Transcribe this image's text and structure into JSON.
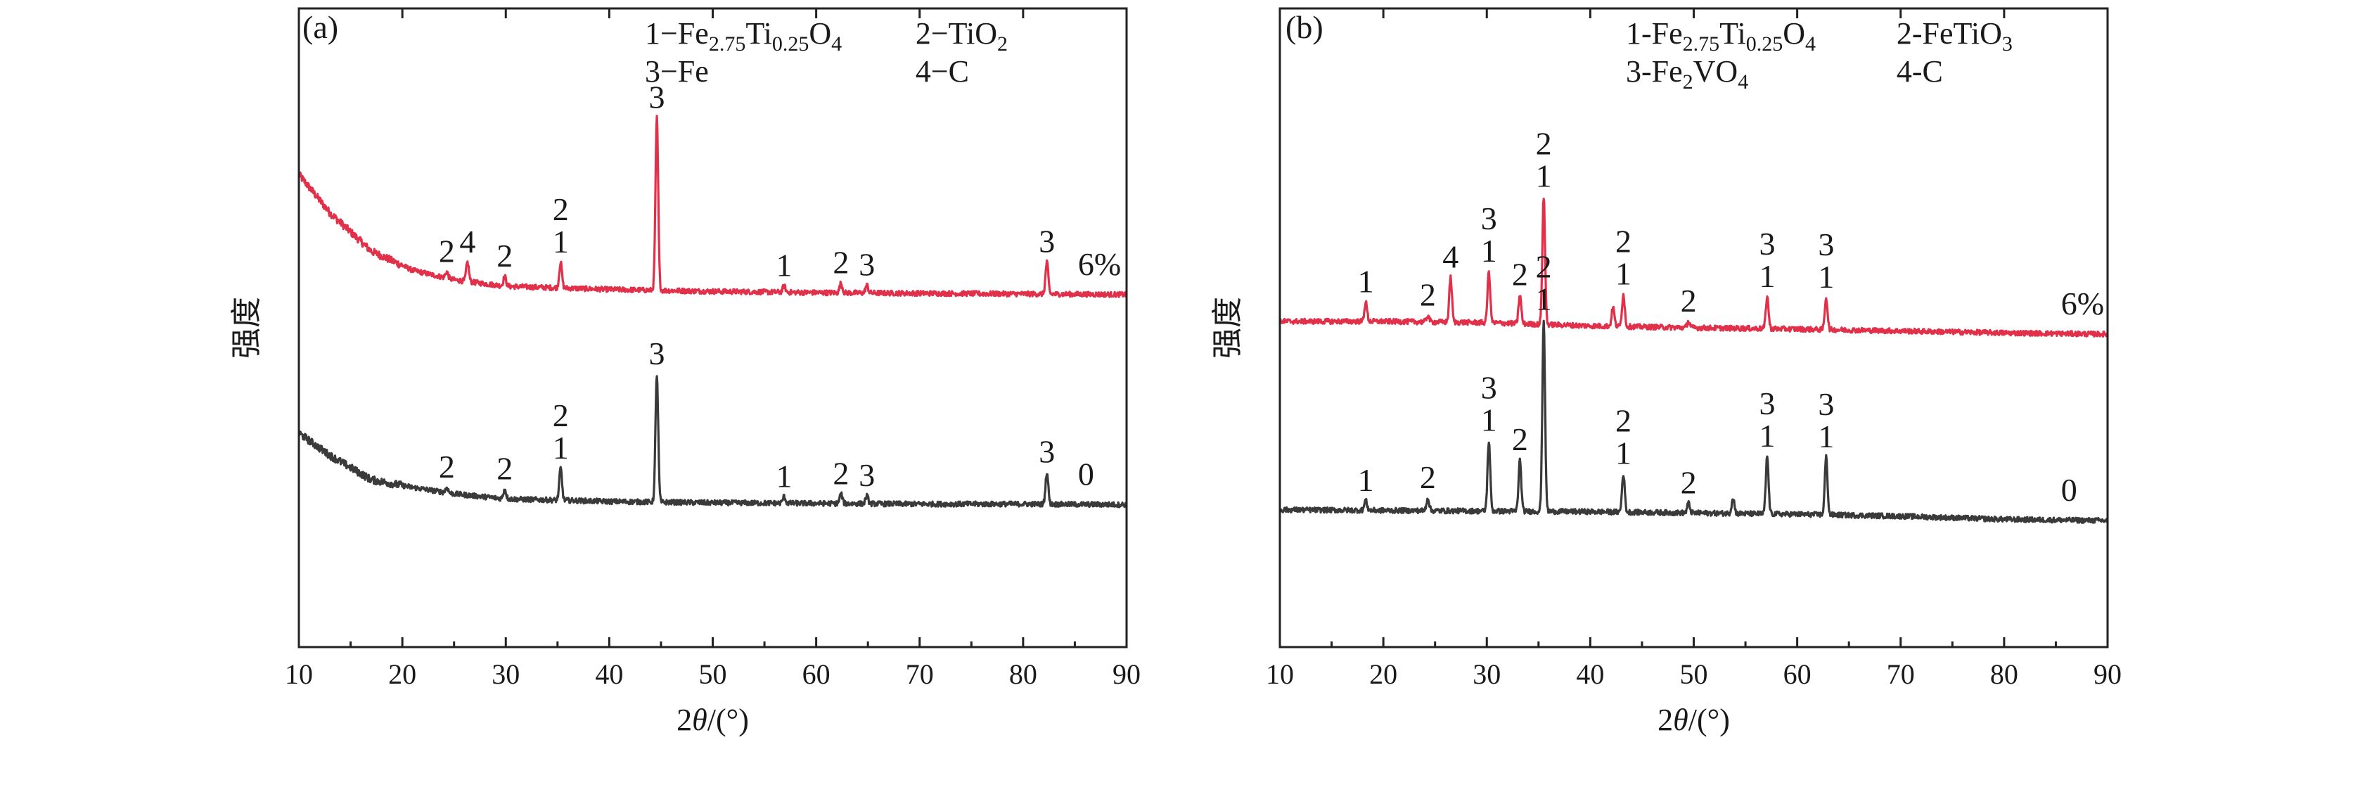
{
  "chart_data": [
    {
      "type": "line",
      "panel": "(a)",
      "xlabel_prefix": "2",
      "xlabel_var": "θ",
      "xlabel_suffix": "/(°)",
      "ylabel": "强度",
      "xlim": [
        10,
        90
      ],
      "xticks": [
        10,
        20,
        30,
        40,
        50,
        60,
        70,
        80,
        90
      ],
      "legend_items": [
        {
          "text": "1−Fe",
          "sub1": "2.75",
          "mid": "Ti",
          "sub2": "0.25",
          "tail": "O",
          "sub3": "4"
        },
        {
          "text": "2−TiO",
          "sub1": "2"
        },
        {
          "text": "3−Fe"
        },
        {
          "text": "4−C"
        }
      ],
      "series": [
        {
          "name": "6%",
          "color": "#e0304a",
          "baseline": [
            [
              10,
              0.74
            ],
            [
              13,
              0.68
            ],
            [
              17,
              0.62
            ],
            [
              21,
              0.59
            ],
            [
              25,
              0.575
            ],
            [
              30,
              0.565
            ],
            [
              40,
              0.56
            ],
            [
              50,
              0.557
            ],
            [
              60,
              0.555
            ],
            [
              70,
              0.554
            ],
            [
              80,
              0.553
            ],
            [
              90,
              0.552
            ]
          ],
          "peaks": [
            {
              "x": 24.3,
              "h": 0.01,
              "label": "2"
            },
            {
              "x": 26.3,
              "h": 0.03,
              "label": "4"
            },
            {
              "x": 29.9,
              "h": 0.015,
              "label": "2"
            },
            {
              "x": 35.3,
              "h": 0.04,
              "label": "1,2"
            },
            {
              "x": 44.6,
              "h": 0.27,
              "label": "3"
            },
            {
              "x": 56.9,
              "h": 0.01,
              "label": "1"
            },
            {
              "x": 62.4,
              "h": 0.015,
              "label": "2"
            },
            {
              "x": 64.9,
              "h": 0.012,
              "label": "3"
            },
            {
              "x": 82.3,
              "h": 0.05,
              "label": "3"
            }
          ]
        },
        {
          "name": "0",
          "color": "#3a3a3a",
          "baseline": [
            [
              10,
              0.335
            ],
            [
              13,
              0.3
            ],
            [
              17,
              0.262
            ],
            [
              21,
              0.25
            ],
            [
              25,
              0.24
            ],
            [
              30,
              0.232
            ],
            [
              40,
              0.228
            ],
            [
              50,
              0.226
            ],
            [
              60,
              0.225
            ],
            [
              70,
              0.224
            ],
            [
              80,
              0.224
            ],
            [
              90,
              0.223
            ]
          ],
          "peaks": [
            {
              "x": 24.3,
              "h": 0.008,
              "label": "2"
            },
            {
              "x": 29.9,
              "h": 0.015,
              "label": "2"
            },
            {
              "x": 35.3,
              "h": 0.05,
              "label": "1,2"
            },
            {
              "x": 44.6,
              "h": 0.2,
              "label": "3"
            },
            {
              "x": 56.9,
              "h": 0.01,
              "label": "1"
            },
            {
              "x": 62.4,
              "h": 0.015,
              "label": "2"
            },
            {
              "x": 64.9,
              "h": 0.012,
              "label": "3"
            },
            {
              "x": 82.3,
              "h": 0.05,
              "label": "3"
            }
          ]
        }
      ]
    },
    {
      "type": "line",
      "panel": "(b)",
      "xlabel_prefix": "2",
      "xlabel_var": "θ",
      "xlabel_suffix": "/(°)",
      "ylabel": "强度",
      "xlim": [
        10,
        90
      ],
      "xticks": [
        10,
        20,
        30,
        40,
        50,
        60,
        70,
        80,
        90
      ],
      "legend_items": [
        {
          "text": "1-Fe",
          "sub1": "2.75",
          "mid": "Ti",
          "sub2": "0.25",
          "tail": "O",
          "sub3": "4"
        },
        {
          "text": "2-FeTiO",
          "sub1": "3"
        },
        {
          "text": "3-Fe",
          "sub1": "2",
          "mid": "VO",
          "sub2": "4"
        },
        {
          "text": "4-C"
        }
      ],
      "series": [
        {
          "name": "6%",
          "color": "#e0304a",
          "baseline": [
            [
              10,
              0.51
            ],
            [
              20,
              0.51
            ],
            [
              30,
              0.508
            ],
            [
              40,
              0.503
            ],
            [
              50,
              0.5
            ],
            [
              60,
              0.498
            ],
            [
              70,
              0.495
            ],
            [
              80,
              0.492
            ],
            [
              90,
              0.49
            ]
          ],
          "peaks": [
            {
              "x": 18.3,
              "h": 0.03,
              "label": "1"
            },
            {
              "x": 24.3,
              "h": 0.01,
              "label": "2"
            },
            {
              "x": 26.5,
              "h": 0.07,
              "label": "4"
            },
            {
              "x": 30.2,
              "h": 0.08,
              "label": "1,3"
            },
            {
              "x": 33.2,
              "h": 0.045,
              "label": "2"
            },
            {
              "x": 35.5,
              "h": 0.2,
              "label": "1,2"
            },
            {
              "x": 42.2,
              "h": 0.03,
              "label": ""
            },
            {
              "x": 43.2,
              "h": 0.05,
              "label": "1,2"
            },
            {
              "x": 49.5,
              "h": 0.01,
              "label": "2"
            },
            {
              "x": 57.1,
              "h": 0.05,
              "label": "1,3"
            },
            {
              "x": 62.8,
              "h": 0.05,
              "label": "1,3"
            }
          ]
        },
        {
          "name": "0",
          "color": "#3a3a3a",
          "baseline": [
            [
              10,
              0.215
            ],
            [
              20,
              0.214
            ],
            [
              30,
              0.213
            ],
            [
              40,
              0.212
            ],
            [
              50,
              0.21
            ],
            [
              60,
              0.208
            ],
            [
              70,
              0.205
            ],
            [
              80,
              0.2
            ],
            [
              90,
              0.198
            ]
          ],
          "peaks": [
            {
              "x": 18.3,
              "h": 0.015,
              "label": "1"
            },
            {
              "x": 24.3,
              "h": 0.02,
              "label": "2"
            },
            {
              "x": 30.2,
              "h": 0.11,
              "label": "1,3"
            },
            {
              "x": 33.2,
              "h": 0.08,
              "label": "2"
            },
            {
              "x": 35.5,
              "h": 0.3,
              "label": "1,2"
            },
            {
              "x": 43.2,
              "h": 0.06,
              "label": "1,2"
            },
            {
              "x": 49.5,
              "h": 0.015,
              "label": "2"
            },
            {
              "x": 53.8,
              "h": 0.025,
              "label": ""
            },
            {
              "x": 57.1,
              "h": 0.09,
              "label": "1,3"
            },
            {
              "x": 62.8,
              "h": 0.09,
              "label": "1,3"
            }
          ]
        }
      ]
    }
  ]
}
